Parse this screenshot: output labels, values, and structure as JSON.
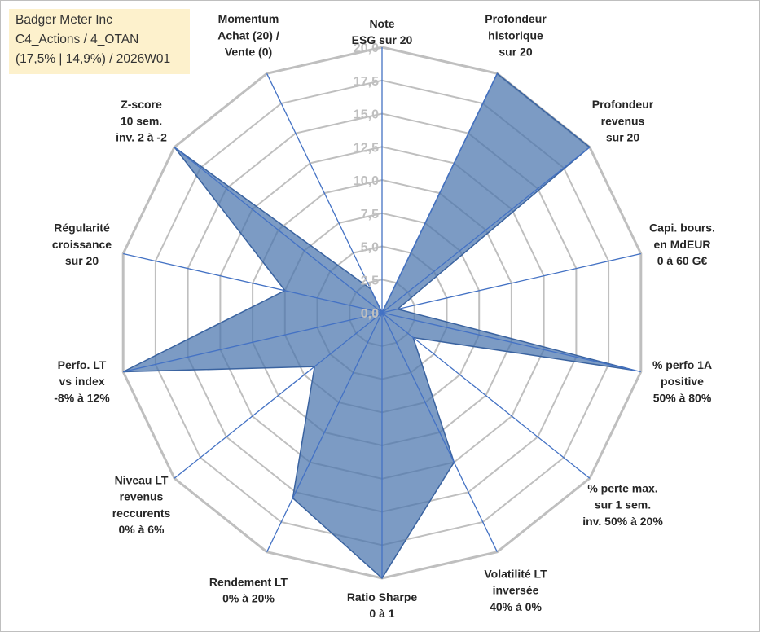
{
  "header": {
    "company": "Badger Meter Inc",
    "category": "C4_Actions / 4_OTAN",
    "details": "(17,5% | 14,9%) / 2026W01"
  },
  "chart_data": {
    "type": "radar",
    "rmin": 0,
    "rmax": 20,
    "ticks": [
      "0,0",
      "2,5",
      "5,0",
      "7,5",
      "10,0",
      "12,5",
      "15,0",
      "17,5",
      "20,0"
    ],
    "grid_color": "#bfbfbf",
    "spoke_color": "#4472c4",
    "fill_color": "#4a74ad",
    "axes": [
      {
        "label": [
          "Note",
          "ESG sur 20"
        ],
        "value": 0
      },
      {
        "label": [
          "Profondeur",
          "historique",
          "sur 20"
        ],
        "value": 20
      },
      {
        "label": [
          "Profondeur",
          "revenus",
          "sur 20"
        ],
        "value": 20
      },
      {
        "label": [
          "Capi. bours.",
          "en MdEUR",
          "0 à 60 G€"
        ],
        "value": 1.2
      },
      {
        "label": [
          "% perfo 1A",
          "positive",
          "50% à 80%"
        ],
        "value": 19.5
      },
      {
        "label": [
          "% perte max.",
          "sur 1 sem.",
          "inv. 50% à 20%"
        ],
        "value": 3
      },
      {
        "label": [
          "Volatilité LT",
          "inversée",
          "40% à 0%"
        ],
        "value": 12.5
      },
      {
        "label": [
          "Ratio Sharpe",
          "0 à 1"
        ],
        "value": 20
      },
      {
        "label": [
          "Rendement LT",
          "0% à 20%"
        ],
        "value": 15.5
      },
      {
        "label": [
          "Niveau LT",
          "revenus",
          "reccurents",
          "0% à 6%"
        ],
        "value": 6.5
      },
      {
        "label": [
          "Perfo. LT",
          "vs index",
          "-8% à 12%"
        ],
        "value": 20
      },
      {
        "label": [
          "Régularité",
          "croissance",
          "sur 20"
        ],
        "value": 7.5
      },
      {
        "label": [
          "Z-score",
          "10 sem.",
          "inv. 2 à -2"
        ],
        "value": 20
      },
      {
        "label": [
          "Momentum",
          "Achat (20) /",
          "Vente (0)"
        ],
        "value": 2
      }
    ]
  }
}
